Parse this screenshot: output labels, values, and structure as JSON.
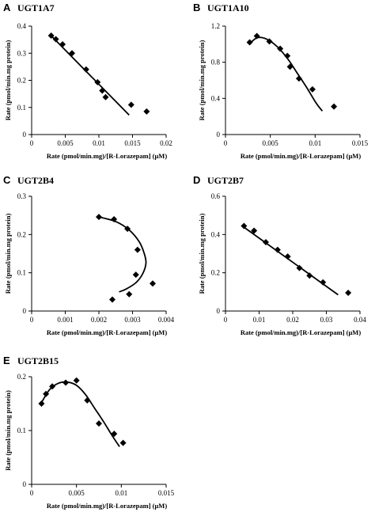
{
  "chart_data": [
    {
      "type": "scatter",
      "panel": "A",
      "title": "UGT1A7",
      "xlabel": "Rate (pmol/min.mg)/[R-Lorazepam] (μM)",
      "ylabel": "Rate (pmol/min.mg protein)",
      "xlim": [
        0,
        0.02
      ],
      "ylim": [
        0,
        0.4
      ],
      "xticks": [
        0,
        0.005,
        0.01,
        0.015,
        0.02
      ],
      "xtick_labels": [
        "0",
        "0.005",
        "0.01",
        "0.015",
        "0.02"
      ],
      "yticks": [
        0,
        0.1,
        0.2,
        0.3,
        0.4
      ],
      "ytick_labels": [
        "0",
        "0.1",
        "0.2",
        "0.3",
        "0.4"
      ],
      "points": [
        [
          0.0029,
          0.365
        ],
        [
          0.0036,
          0.352
        ],
        [
          0.0046,
          0.333
        ],
        [
          0.006,
          0.3
        ],
        [
          0.0081,
          0.24
        ],
        [
          0.0098,
          0.193
        ],
        [
          0.0105,
          0.162
        ],
        [
          0.011,
          0.138
        ],
        [
          0.0148,
          0.11
        ],
        [
          0.0171,
          0.085
        ]
      ],
      "fit": [
        [
          0.0028,
          0.367
        ],
        [
          0.0145,
          0.072
        ]
      ]
    },
    {
      "type": "scatter",
      "panel": "B",
      "title": "UGT1A10",
      "xlabel": "Rate (pmol/min.mg)/[R-Lorazepam] (μM)",
      "ylabel": "Rate (pmol/min.mg protein)",
      "xlim": [
        0,
        0.015
      ],
      "ylim": [
        0,
        1.2
      ],
      "xticks": [
        0,
        0.005,
        0.01,
        0.015
      ],
      "xtick_labels": [
        "0",
        "0.005",
        "0.01",
        "0.015"
      ],
      "yticks": [
        0,
        0.4,
        0.8,
        1.2
      ],
      "ytick_labels": [
        "0",
        "0.4",
        "0.8",
        "1.2"
      ],
      "points": [
        [
          0.0027,
          1.02
        ],
        [
          0.0035,
          1.09
        ],
        [
          0.0049,
          1.03
        ],
        [
          0.0061,
          0.95
        ],
        [
          0.0069,
          0.87
        ],
        [
          0.0072,
          0.75
        ],
        [
          0.0082,
          0.62
        ],
        [
          0.0097,
          0.5
        ],
        [
          0.0121,
          0.31
        ]
      ],
      "fit": [
        [
          0.0027,
          1.005
        ],
        [
          0.0035,
          1.07
        ],
        [
          0.0045,
          1.06
        ],
        [
          0.0058,
          0.97
        ],
        [
          0.007,
          0.83
        ],
        [
          0.008,
          0.68
        ],
        [
          0.009,
          0.53
        ],
        [
          0.0101,
          0.35
        ],
        [
          0.0108,
          0.26
        ]
      ]
    },
    {
      "type": "scatter",
      "panel": "C",
      "title": "UGT2B4",
      "xlabel": "Rate (pmol/min.mg)/[R-Lorazepam] (μM)",
      "ylabel": "Rate (pmol/min.mg protein)",
      "xlim": [
        0,
        0.004
      ],
      "ylim": [
        0,
        0.3
      ],
      "xticks": [
        0,
        0.001,
        0.002,
        0.003,
        0.004
      ],
      "xtick_labels": [
        "0",
        "0.001",
        "0.002",
        "0.003",
        "0.004"
      ],
      "yticks": [
        0,
        0.1,
        0.2,
        0.3
      ],
      "yticks_labels_note": "",
      "ytick_labels": [
        "0",
        "0.1",
        "0.2",
        "0.3"
      ],
      "points": [
        [
          0.002,
          0.246
        ],
        [
          0.00245,
          0.24
        ],
        [
          0.00285,
          0.215
        ],
        [
          0.00315,
          0.16
        ],
        [
          0.0031,
          0.095
        ],
        [
          0.0036,
          0.072
        ],
        [
          0.0029,
          0.044
        ],
        [
          0.0024,
          0.03
        ]
      ],
      "fit": [
        [
          0.002,
          0.246
        ],
        [
          0.0025,
          0.234
        ],
        [
          0.0029,
          0.212
        ],
        [
          0.0032,
          0.181
        ],
        [
          0.00335,
          0.15
        ],
        [
          0.0034,
          0.125
        ],
        [
          0.0033,
          0.097
        ],
        [
          0.0031,
          0.074
        ],
        [
          0.0028,
          0.057
        ],
        [
          0.0026,
          0.05
        ]
      ]
    },
    {
      "type": "scatter",
      "panel": "D",
      "title": "UGT2B7",
      "xlabel": "Rate (pmol/min.mg)/[R-Lorazepam] (μM)",
      "ylabel": "Rate (pmol/min.mg protein)",
      "xlim": [
        0,
        0.04
      ],
      "ylim": [
        0,
        0.6
      ],
      "xticks": [
        0,
        0.01,
        0.02,
        0.03,
        0.04
      ],
      "xtick_labels": [
        "0",
        "0.01",
        "0.02",
        "0.03",
        "0.04"
      ],
      "yticks": [
        0,
        0.2,
        0.4,
        0.6
      ],
      "ytick_labels": [
        "0",
        "0.2",
        "0.4",
        "0.6"
      ],
      "points": [
        [
          0.0055,
          0.445
        ],
        [
          0.0085,
          0.42
        ],
        [
          0.012,
          0.36
        ],
        [
          0.0155,
          0.32
        ],
        [
          0.0185,
          0.285
        ],
        [
          0.022,
          0.225
        ],
        [
          0.025,
          0.185
        ],
        [
          0.029,
          0.15
        ],
        [
          0.0365,
          0.095
        ]
      ],
      "fit": [
        [
          0.0055,
          0.438
        ],
        [
          0.0335,
          0.085
        ]
      ]
    },
    {
      "type": "scatter",
      "panel": "E",
      "title": "UGT2B15",
      "xlabel": "Rate (pmol/min.mg)/[R-Lorazepam] (μM)",
      "ylabel": "Rate (pmol/min.mg protein)",
      "xlim": [
        0,
        0.015
      ],
      "ylim": [
        0,
        0.2
      ],
      "xticks": [
        0,
        0.005,
        0.01,
        0.015
      ],
      "xtick_labels": [
        "0",
        "0.005",
        "0.01",
        "0.015"
      ],
      "yticks": [
        0,
        0.1,
        0.2
      ],
      "ytick_labels": [
        "0",
        "0.1",
        "0.2"
      ],
      "points": [
        [
          0.0011,
          0.15
        ],
        [
          0.0016,
          0.168
        ],
        [
          0.0023,
          0.182
        ],
        [
          0.0038,
          0.189
        ],
        [
          0.005,
          0.193
        ],
        [
          0.0062,
          0.156
        ],
        [
          0.0075,
          0.113
        ],
        [
          0.0092,
          0.094
        ],
        [
          0.0102,
          0.077
        ]
      ],
      "fit": [
        [
          0.0011,
          0.152
        ],
        [
          0.002,
          0.176
        ],
        [
          0.003,
          0.188
        ],
        [
          0.004,
          0.19
        ],
        [
          0.005,
          0.184
        ],
        [
          0.006,
          0.167
        ],
        [
          0.007,
          0.142
        ],
        [
          0.008,
          0.117
        ],
        [
          0.009,
          0.09
        ],
        [
          0.0098,
          0.07
        ]
      ]
    }
  ]
}
